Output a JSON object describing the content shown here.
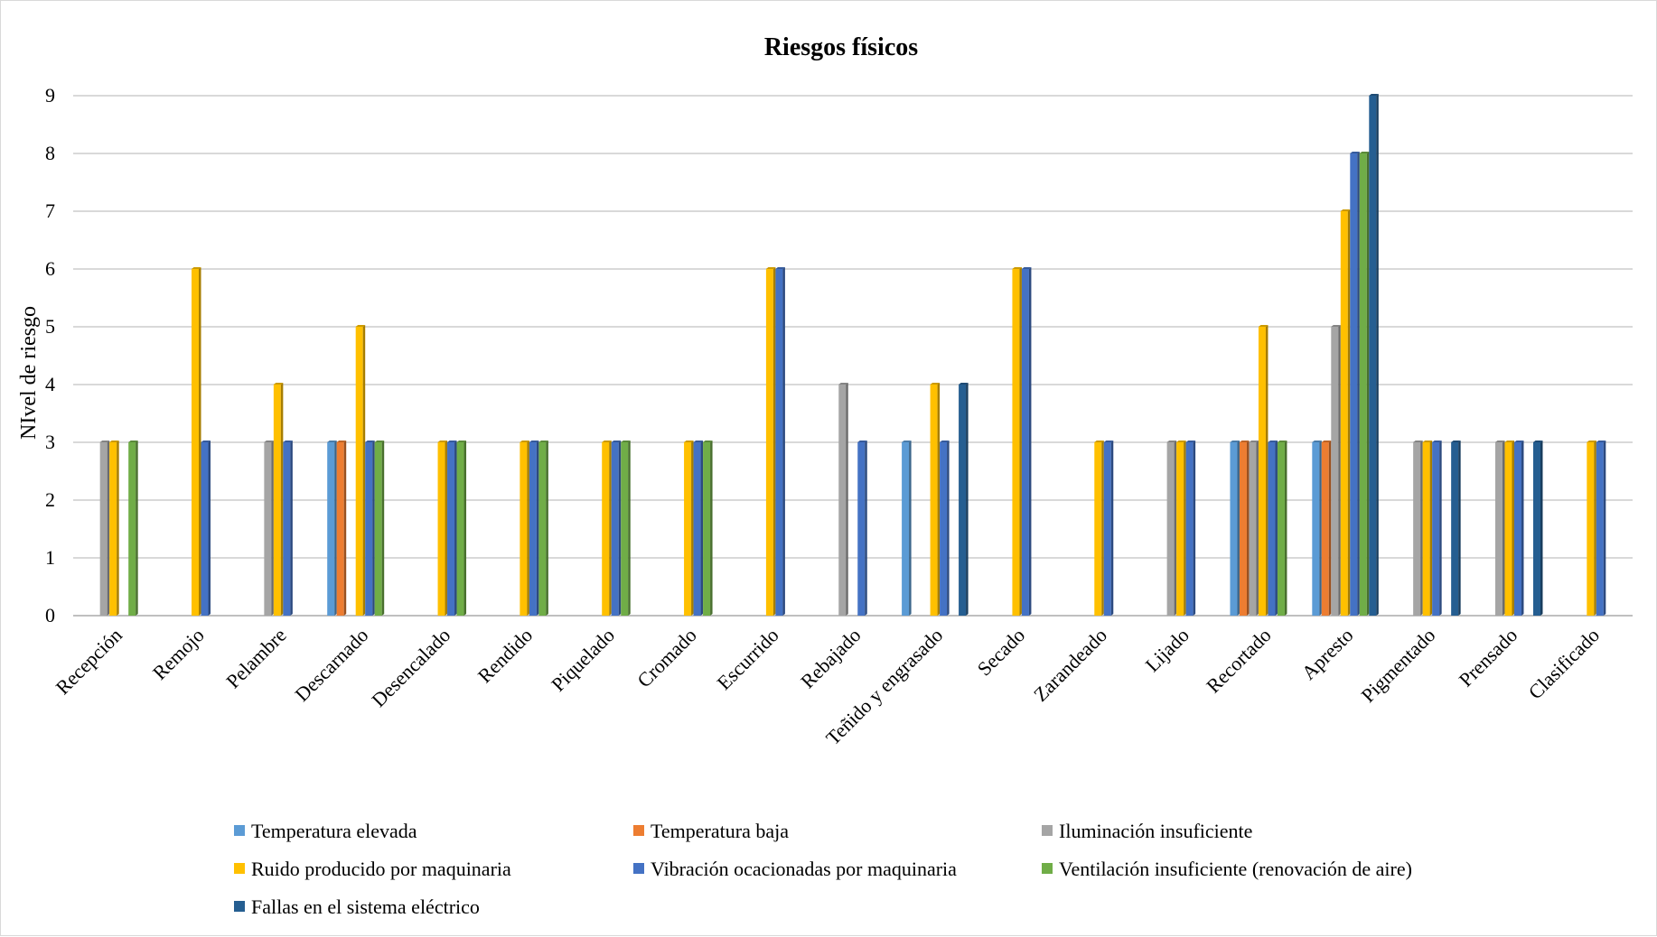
{
  "chart_data": {
    "type": "bar",
    "title": "Riesgos físicos",
    "ylabel": "NIvel de riesgo",
    "xlabel": "",
    "ylim": [
      0,
      9
    ],
    "yticks": [
      "0",
      "1",
      "2",
      "3",
      "4",
      "5",
      "6",
      "7",
      "8",
      "9"
    ],
    "grid": true,
    "legend_position": "bottom",
    "categories": [
      "Recepción",
      "Remojo",
      "Pelambre",
      "Descarnado",
      "Desencalado",
      "Rendido",
      "Piquelado",
      "Cromado",
      "Escurrido",
      "Rebajado",
      "Teñido y engrasado",
      "Secado",
      "Zarandeado",
      "Lijado",
      "Recortado",
      "Apresto",
      "Pigmentado",
      "Prensado",
      "Clasificado"
    ],
    "series": [
      {
        "name": "Temperatura elevada",
        "color": "#5b9bd5",
        "values": [
          0,
          0,
          0,
          3,
          0,
          0,
          0,
          0,
          0,
          0,
          3,
          0,
          0,
          0,
          3,
          3,
          0,
          0,
          0
        ]
      },
      {
        "name": "Temperatura baja",
        "color": "#ed7d31",
        "values": [
          0,
          0,
          0,
          3,
          0,
          0,
          0,
          0,
          0,
          0,
          0,
          0,
          0,
          0,
          3,
          3,
          0,
          0,
          0
        ]
      },
      {
        "name": "Iluminación insuficiente",
        "color": "#a5a5a5",
        "values": [
          3,
          0,
          3,
          0,
          0,
          0,
          0,
          0,
          0,
          4,
          0,
          0,
          0,
          3,
          3,
          5,
          3,
          3,
          0
        ]
      },
      {
        "name": "Ruido producido por maquinaria",
        "color": "#ffc000",
        "values": [
          3,
          6,
          4,
          5,
          3,
          3,
          3,
          3,
          6,
          0,
          4,
          6,
          3,
          3,
          5,
          7,
          3,
          3,
          3
        ]
      },
      {
        "name": "Vibración ocacionadas por maquinaria",
        "color": "#4472c4",
        "values": [
          0,
          3,
          3,
          3,
          3,
          3,
          3,
          3,
          6,
          3,
          3,
          6,
          3,
          3,
          3,
          8,
          3,
          3,
          3
        ]
      },
      {
        "name": "Ventilación insuficiente (renovación de aire)",
        "color": "#70ad47",
        "values": [
          3,
          0,
          0,
          3,
          3,
          3,
          3,
          3,
          0,
          0,
          0,
          0,
          0,
          0,
          3,
          8,
          0,
          0,
          0
        ]
      },
      {
        "name": "Fallas en el sistema eléctrico",
        "color": "#255e91",
        "values": [
          0,
          0,
          0,
          0,
          0,
          0,
          0,
          0,
          0,
          0,
          4,
          0,
          0,
          0,
          0,
          9,
          3,
          3,
          0
        ]
      }
    ]
  }
}
